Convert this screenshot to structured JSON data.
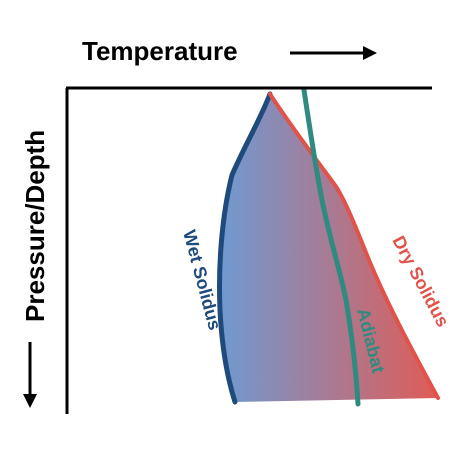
{
  "x_axis": {
    "label": "Temperature"
  },
  "y_axis": {
    "label": "Pressure/Depth"
  },
  "curves": {
    "wet_solidus": {
      "label": "Wet Solidus",
      "color": "#1f4a7c"
    },
    "dry_solidus": {
      "label": "Dry Solidus",
      "color": "#e0524a"
    },
    "adiabat": {
      "label": "Adiabat",
      "color": "#2f8a80"
    }
  },
  "fill_gradient": {
    "start_color": "#6f9ad2",
    "end_color": "#e15b55"
  },
  "axis_color": "#000000"
}
